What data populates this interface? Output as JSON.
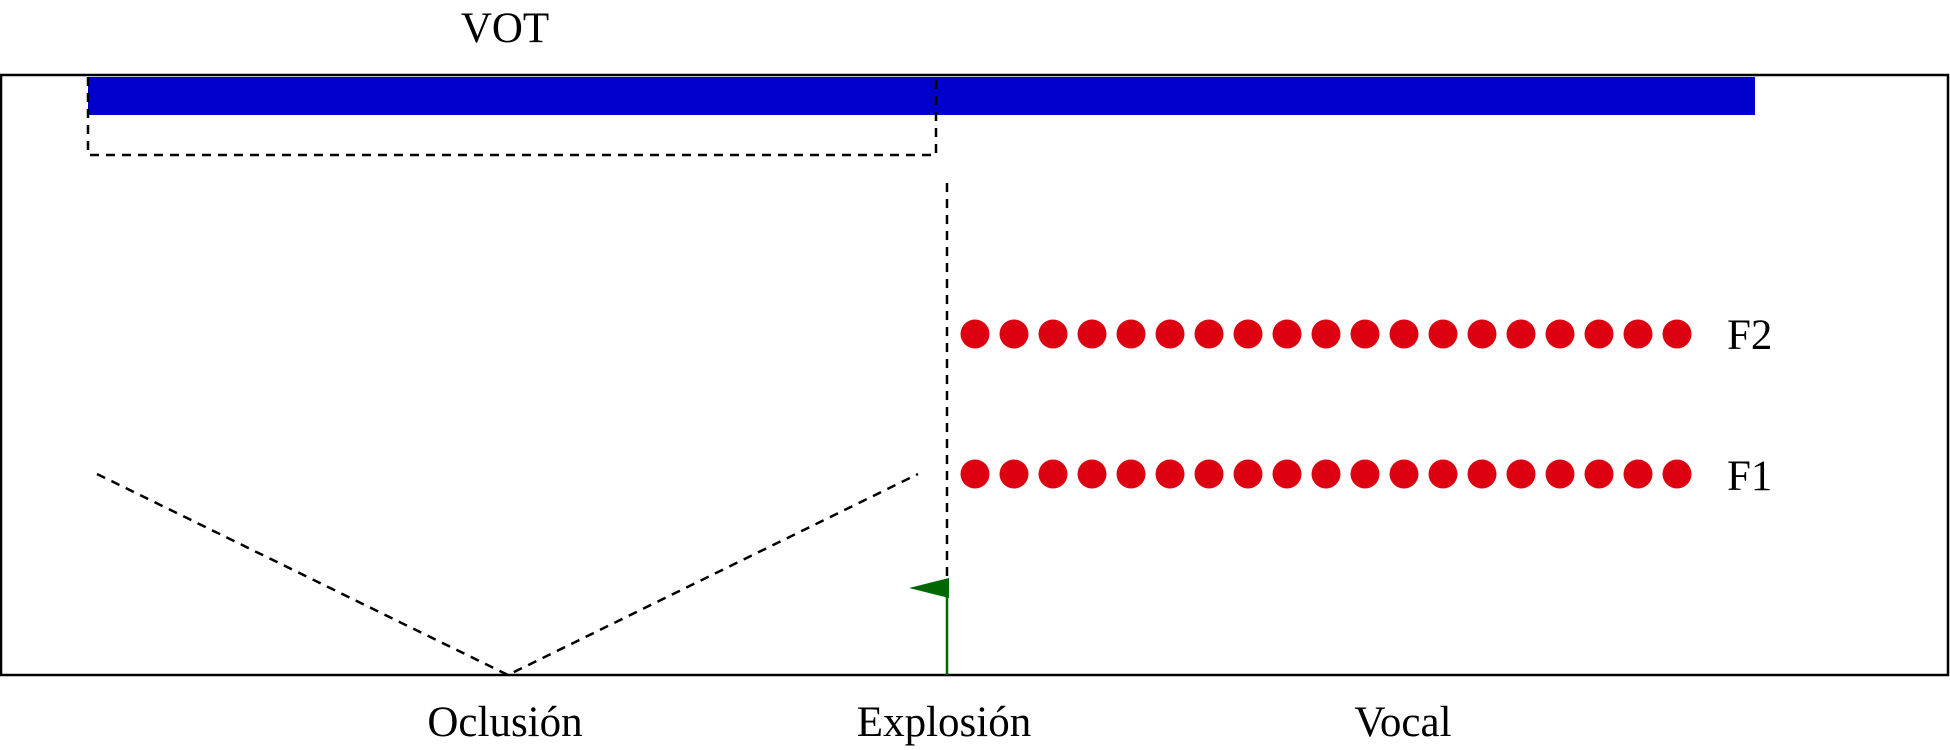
{
  "labels": {
    "vot": "VOT",
    "f2": "F2",
    "f1": "F1",
    "oclusion": "Oclusión",
    "explosion": "Explosión",
    "vocal": "Vocal"
  },
  "formants": {
    "dot_count": 19,
    "rows": [
      "F2",
      "F1"
    ]
  },
  "colors": {
    "voicing_bar": "#0000cc",
    "formant_dots": "#dd0011",
    "burst_arrow": "#006600",
    "lines": "#000000"
  },
  "icons": {
    "burst": "arrow-up-icon"
  }
}
